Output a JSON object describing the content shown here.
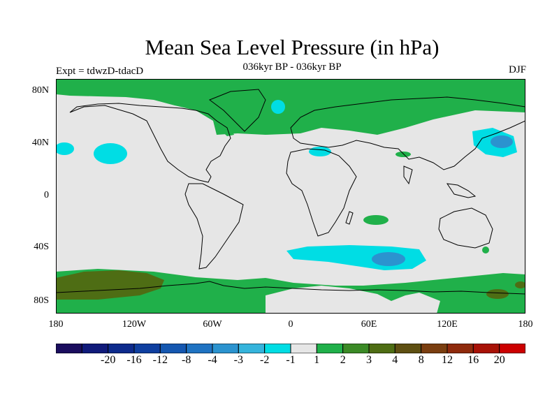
{
  "header": {
    "title": "Mean Sea Level Pressure (in hPa)",
    "subtitle": "036kyr BP - 036kyr BP",
    "left_label": "Expt = tdwzD-tdacD",
    "right_label": "DJF"
  },
  "axes": {
    "y_ticks": [
      "80N",
      "40N",
      "0",
      "40S",
      "80S"
    ],
    "x_ticks": [
      "180",
      "120W",
      "60W",
      "0",
      "60E",
      "120E",
      "180"
    ]
  },
  "colorbar": {
    "colors": [
      "#1a0d5e",
      "#101a7a",
      "#0d2a8c",
      "#0f3fa0",
      "#1557b0",
      "#1f73c2",
      "#2b93cf",
      "#35b4dc",
      "#00dde4",
      "#e6e6e6",
      "#20b04a",
      "#3b8a26",
      "#4e6d14",
      "#5e4f12",
      "#7a3e10",
      "#8f2a0c",
      "#a81206",
      "#cc0000"
    ],
    "labels": [
      "-20",
      "-16",
      "-12",
      "-8",
      "-4",
      "-3",
      "-2",
      "-1",
      "1",
      "2",
      "3",
      "4",
      "8",
      "12",
      "16",
      "20"
    ]
  },
  "map": {
    "land_color": "#e6e6e6",
    "positive_color": "#20b04a",
    "positive_strong_color": "#4e6d14",
    "negative_color": "#00dde4",
    "negative_strong_color": "#2b93cf"
  }
}
